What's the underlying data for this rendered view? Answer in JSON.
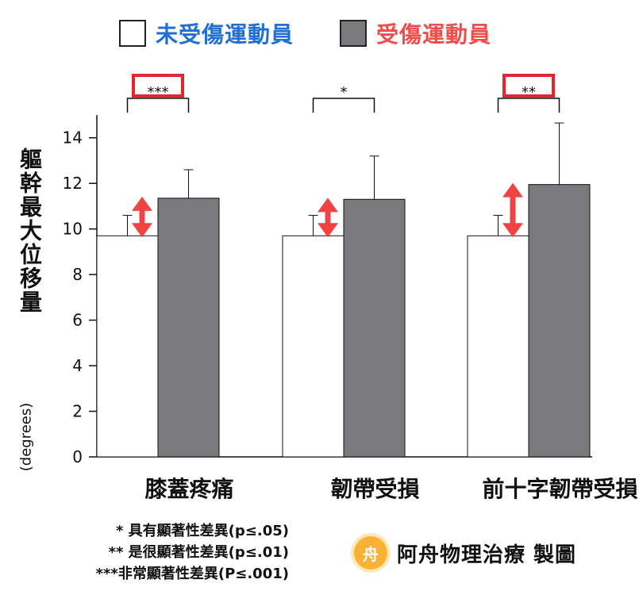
{
  "legend": {
    "items": [
      {
        "label": "未受傷運動員",
        "label_color": "#1f6fd6",
        "fill": "#ffffff"
      },
      {
        "label": "受傷運動員",
        "label_color": "#f14c4c",
        "fill": "#7a7a7c"
      }
    ]
  },
  "ylabel": {
    "text": "軀幹最大位移量",
    "unit": "(degrees)"
  },
  "footnotes": [
    "* 具有顯著性差異(p≤.05)",
    "** 是很顯著性差異(p≤.01)",
    "***非常顯著性差異(P≤.001)"
  ],
  "watermark": {
    "logo_char": "舟",
    "text": "阿舟物理治療 製圖"
  },
  "chart_data": {
    "type": "bar",
    "categories": [
      "膝蓋疼痛",
      "韌帶受損",
      "前十字韌帶受損"
    ],
    "series": [
      {
        "name": "未受傷運動員",
        "values": [
          9.7,
          9.7,
          9.7
        ],
        "errors": [
          0.9,
          0.9,
          0.9
        ],
        "color": "#ffffff"
      },
      {
        "name": "受傷運動員",
        "values": [
          11.35,
          11.3,
          11.95
        ],
        "errors": [
          1.25,
          1.9,
          2.7
        ],
        "color": "#7a7a7c"
      }
    ],
    "ylim": [
      0,
      15
    ],
    "yticks": [
      0,
      2,
      4,
      6,
      8,
      10,
      12,
      14
    ],
    "significance": [
      {
        "category": "膝蓋疼痛",
        "label": "***",
        "highlighted": true
      },
      {
        "category": "韌帶受損",
        "label": "*",
        "highlighted": false
      },
      {
        "category": "前十字韌帶受損",
        "label": "**",
        "highlighted": true
      }
    ],
    "highlight_color": "#e8232c",
    "arrow_color": "#f04444"
  }
}
